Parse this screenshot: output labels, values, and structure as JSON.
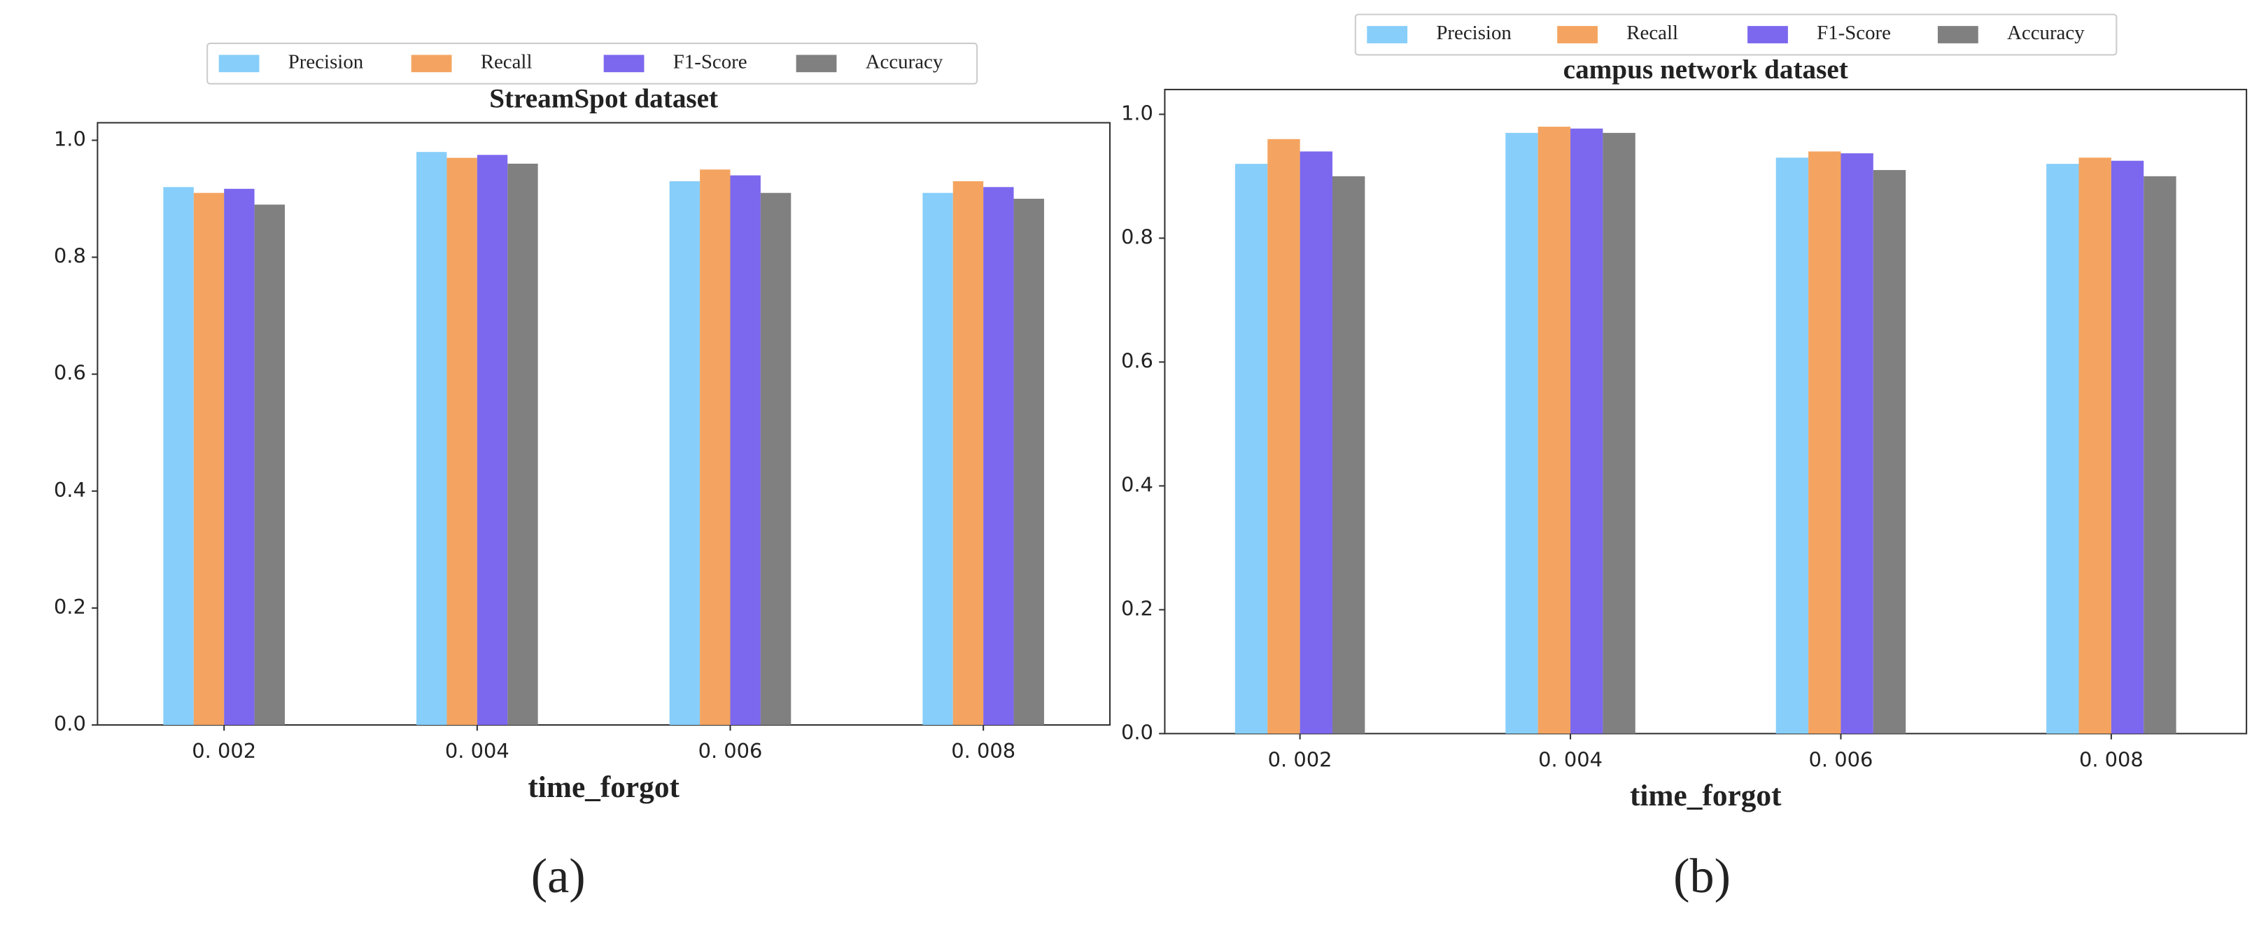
{
  "chart_data": [
    {
      "type": "bar",
      "title": "StreamSpot dataset",
      "xlabel": "time_forgot",
      "panel_label": "(a)",
      "categories": [
        "0. 002",
        "0. 004",
        "0. 006",
        "0. 008"
      ],
      "series": [
        {
          "name": "Precision",
          "color": "#87cefa",
          "values": [
            0.92,
            0.98,
            0.93,
            0.91
          ]
        },
        {
          "name": "Recall",
          "color": "#f4a460",
          "values": [
            0.91,
            0.97,
            0.95,
            0.93
          ]
        },
        {
          "name": "F1-Score",
          "color": "#7b68ee",
          "values": [
            0.917,
            0.975,
            0.94,
            0.92
          ]
        },
        {
          "name": "Accuracy",
          "color": "#808080",
          "values": [
            0.89,
            0.96,
            0.91,
            0.9
          ]
        }
      ],
      "ylim": [
        0,
        1.03
      ],
      "yticks": [
        {
          "value": 0,
          "label": "0.0"
        },
        0.2,
        0.4,
        0.6,
        0.8,
        {
          "value": 1,
          "label": "1.0"
        }
      ]
    },
    {
      "type": "bar",
      "title": "campus network dataset",
      "xlabel": "time_forgot",
      "panel_label": "(b)",
      "categories": [
        "0. 002",
        "0. 004",
        "0. 006",
        "0. 008"
      ],
      "series": [
        {
          "name": "Precision",
          "color": "#87cefa",
          "values": [
            0.92,
            0.97,
            0.93,
            0.92
          ]
        },
        {
          "name": "Recall",
          "color": "#f4a460",
          "values": [
            0.96,
            0.98,
            0.94,
            0.93
          ]
        },
        {
          "name": "F1-Score",
          "color": "#7b68ee",
          "values": [
            0.94,
            0.977,
            0.937,
            0.925
          ]
        },
        {
          "name": "Accuracy",
          "color": "#808080",
          "values": [
            0.9,
            0.97,
            0.91,
            0.9
          ]
        }
      ],
      "ylim": [
        0,
        1.04
      ],
      "yticks": [
        {
          "value": 0,
          "label": "0.0"
        },
        0.2,
        0.4,
        0.6,
        0.8,
        {
          "value": 1,
          "label": "1.0"
        }
      ]
    }
  ]
}
